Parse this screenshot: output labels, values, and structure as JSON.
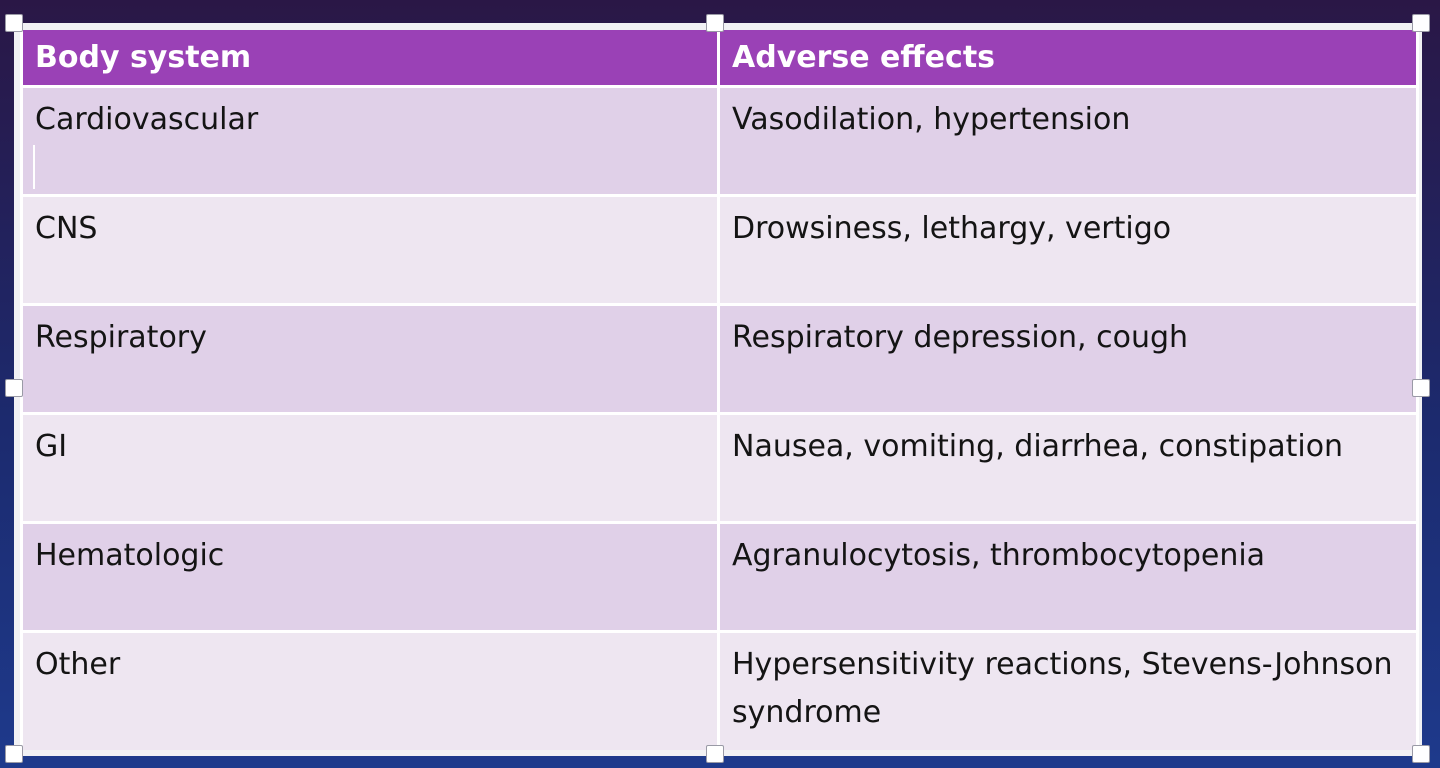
{
  "table": {
    "headers": [
      "Body system",
      "Adverse effects"
    ],
    "rows": [
      {
        "system": "Cardiovascular",
        "effects": "Vasodilation, hypertension"
      },
      {
        "system": "CNS",
        "effects": "Drowsiness, lethargy, vertigo"
      },
      {
        "system": "Respiratory",
        "effects": "Respiratory depression, cough"
      },
      {
        "system": "GI",
        "effects": "Nausea, vomiting, diarrhea, constipation"
      },
      {
        "system": "Hematologic",
        "effects": "Agranulocytosis, thrombocytopenia"
      },
      {
        "system": "Other",
        "effects": "Hypersensitivity reactions, Stevens-Johnson syndrome"
      }
    ]
  },
  "colors": {
    "header_bg": "#9a41b6",
    "band_dark": "#e0d0e8",
    "band_light": "#eee6f1"
  }
}
